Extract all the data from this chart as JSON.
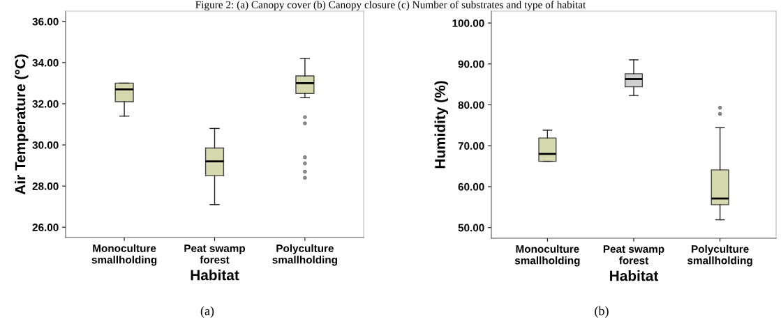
{
  "chart_data": [
    {
      "type": "box",
      "title": "Figure 2: (a) Canopy cover (b) Canopy closure (c) Number of substrates and type of habitat",
      "xlabel": "Habitat",
      "ylabel": "Air Temperature (°C)",
      "annotations": [
        "(a)"
      ],
      "categories": [
        "Monoculture\nsmallholding",
        "Peat swamp\nforest",
        "Polyculture\nsmallholding"
      ],
      "colors": [
        "#d6d9ad",
        "#d6d9ad",
        "#d6d9ad"
      ],
      "boxes": [
        {
          "low": 31.4,
          "q1": 32.1,
          "median": 32.7,
          "q3": 33.0,
          "high": 33.0
        },
        {
          "low": 27.1,
          "q1": 28.5,
          "median": 29.2,
          "q3": 29.85,
          "high": 30.8
        },
        {
          "low": 32.3,
          "q1": 32.5,
          "median": 33.0,
          "q3": 33.35,
          "high": 34.2,
          "outliers": [
            31.35,
            31.05,
            29.4,
            29.1,
            28.7,
            28.4
          ]
        }
      ],
      "ylim": [
        25.5,
        36.5
      ],
      "yticks": [
        {
          "value": 26,
          "label": "26.00"
        },
        {
          "value": 28,
          "label": "28.00"
        },
        {
          "value": 30,
          "label": "30.00"
        },
        {
          "value": 32,
          "label": "32.00"
        },
        {
          "value": 34,
          "label": "34.00"
        },
        {
          "value": 36,
          "label": "36.00"
        }
      ],
      "grid": false
    },
    {
      "type": "box",
      "xlabel": "Habitat",
      "ylabel": "Humidity (%)",
      "annotations": [
        "(b)"
      ],
      "categories": [
        "Monoculture\nsmallholding",
        "Peat swamp\nforest",
        "Polyculture\nsmallholding"
      ],
      "colors": [
        "#d6d9ad",
        "#cfcfcf",
        "#d6d9ad"
      ],
      "boxes": [
        {
          "low": 66.2,
          "q1": 66.2,
          "median": 68.0,
          "q3": 71.9,
          "high": 73.8
        },
        {
          "low": 82.3,
          "q1": 84.4,
          "median": 86.3,
          "q3": 87.6,
          "high": 91.0
        },
        {
          "low": 51.9,
          "q1": 55.6,
          "median": 57.1,
          "q3": 64.1,
          "high": 74.4,
          "outliers": [
            77.8,
            79.3
          ]
        }
      ],
      "ylim": [
        47.4,
        102.9
      ],
      "yticks": [
        {
          "value": 50,
          "label": "50.00"
        },
        {
          "value": 60,
          "label": "60.00"
        },
        {
          "value": 70,
          "label": "70.00"
        },
        {
          "value": 80,
          "label": "80.00"
        },
        {
          "value": 90,
          "label": "90.00"
        },
        {
          "value": 100,
          "label": "100.00"
        }
      ],
      "grid": false
    }
  ]
}
